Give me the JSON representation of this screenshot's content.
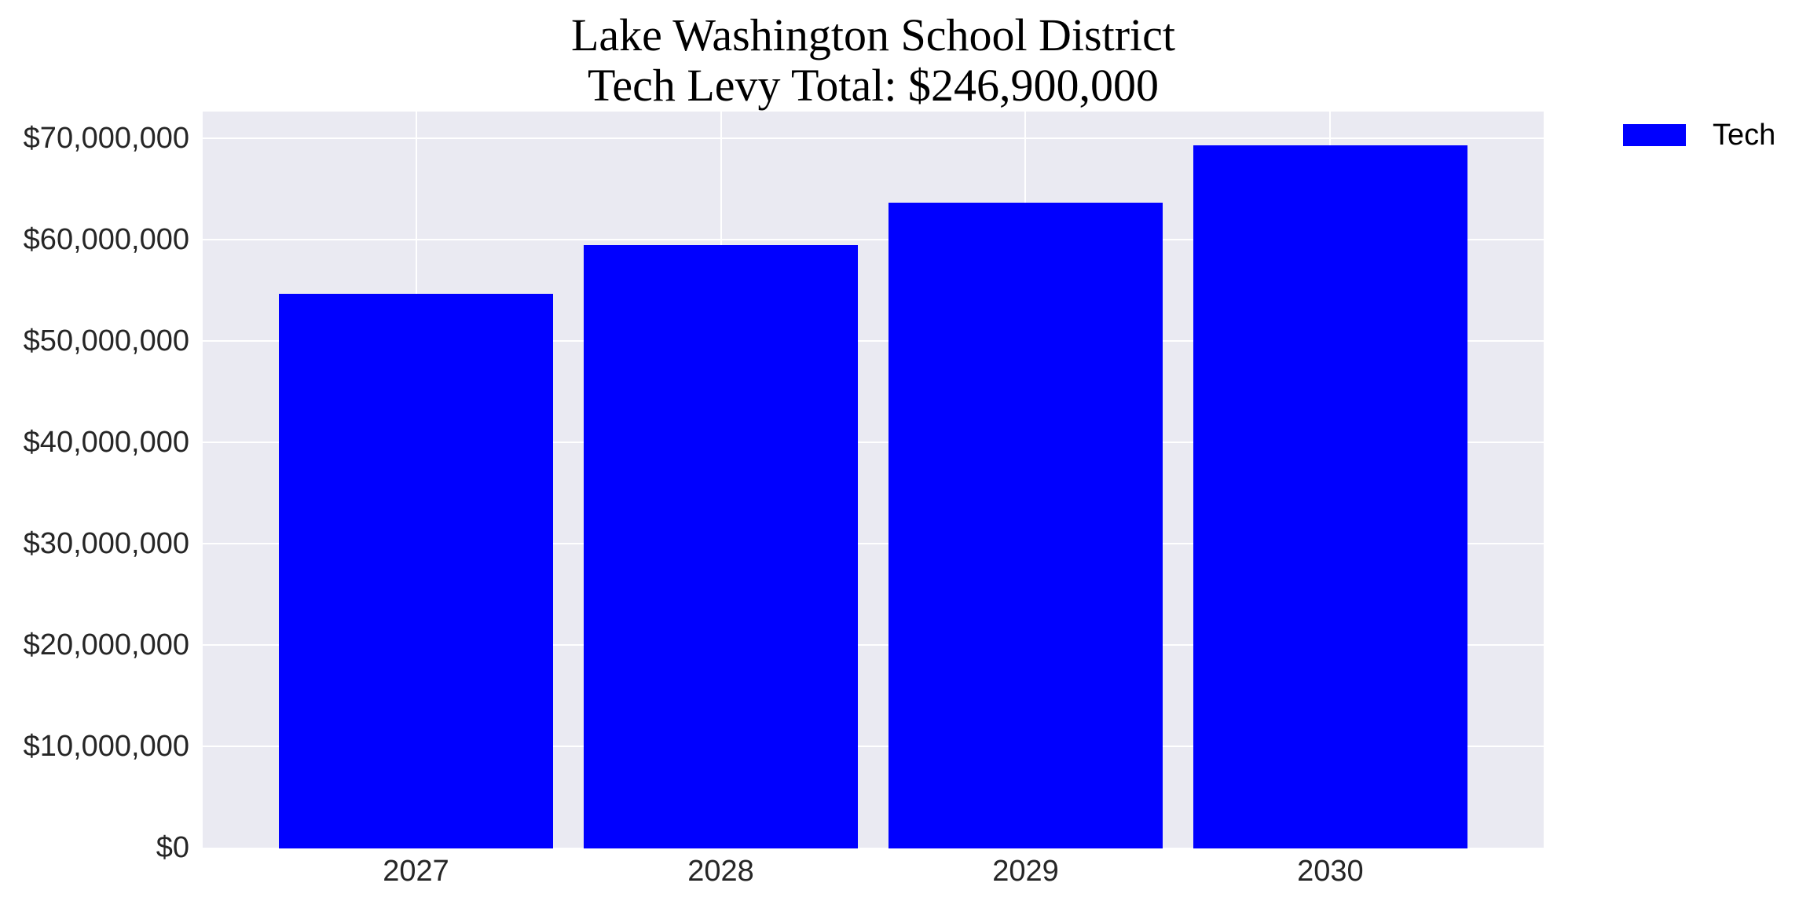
{
  "chart_data": {
    "type": "bar",
    "title": "Lake Washington School District",
    "subtitle": "Tech Levy Total: $246,900,000",
    "xlabel": "",
    "ylabel": "",
    "categories": [
      "2027",
      "2028",
      "2029",
      "2030"
    ],
    "series": [
      {
        "name": "Tech",
        "color": "#0000FF",
        "values": [
          54600000,
          59400000,
          63600000,
          69300000
        ]
      }
    ],
    "ylim": [
      0,
      72600000
    ],
    "yticks": [
      0,
      10000000,
      20000000,
      30000000,
      40000000,
      50000000,
      60000000,
      70000000
    ],
    "ytick_labels": [
      "$0",
      "$10,000,000",
      "$20,000,000",
      "$30,000,000",
      "$40,000,000",
      "$50,000,000",
      "$60,000,000",
      "$70,000,000"
    ],
    "grid": true,
    "background": "#EAEAF2",
    "legend": {
      "position": "outside-upper-right",
      "entries": [
        "Tech"
      ]
    }
  },
  "title": {
    "line1": "Lake Washington School District",
    "line2": "Tech Levy Total: $246,900,000"
  },
  "axes": {
    "yticks": [
      {
        "label": "$0",
        "value": 0
      },
      {
        "label": "$10,000,000",
        "value": 10000000
      },
      {
        "label": "$20,000,000",
        "value": 20000000
      },
      {
        "label": "$30,000,000",
        "value": 30000000
      },
      {
        "label": "$40,000,000",
        "value": 40000000
      },
      {
        "label": "$50,000,000",
        "value": 50000000
      },
      {
        "label": "$60,000,000",
        "value": 60000000
      },
      {
        "label": "$70,000,000",
        "value": 70000000
      }
    ],
    "xticks": [
      "2027",
      "2028",
      "2029",
      "2030"
    ]
  },
  "legend": {
    "items": [
      {
        "label": "Tech",
        "color": "#0000FF"
      }
    ]
  }
}
